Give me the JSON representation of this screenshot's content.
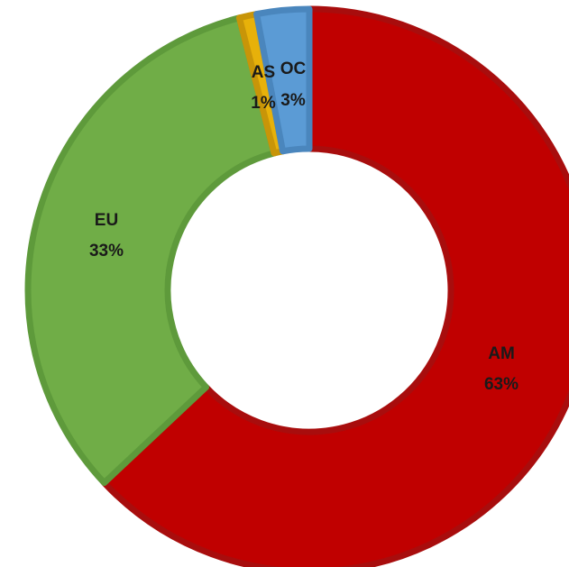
{
  "chart_data": {
    "type": "pie",
    "donut": true,
    "slices": [
      {
        "category": "AM",
        "percent_label": "63%",
        "value": 63,
        "color": "#c00000",
        "edge": "#a80d0d"
      },
      {
        "category": "EU",
        "percent_label": "33%",
        "value": 33,
        "color": "#70ad47",
        "edge": "#5e9a3b"
      },
      {
        "category": "AS",
        "percent_label": "1%",
        "value": 1,
        "color": "#e7b10a",
        "edge": "#c89508"
      },
      {
        "category": "OC",
        "percent_label": "3%",
        "value": 3,
        "color": "#5b9bd5",
        "edge": "#4a86bd"
      }
    ],
    "legend": "none",
    "title": ""
  }
}
